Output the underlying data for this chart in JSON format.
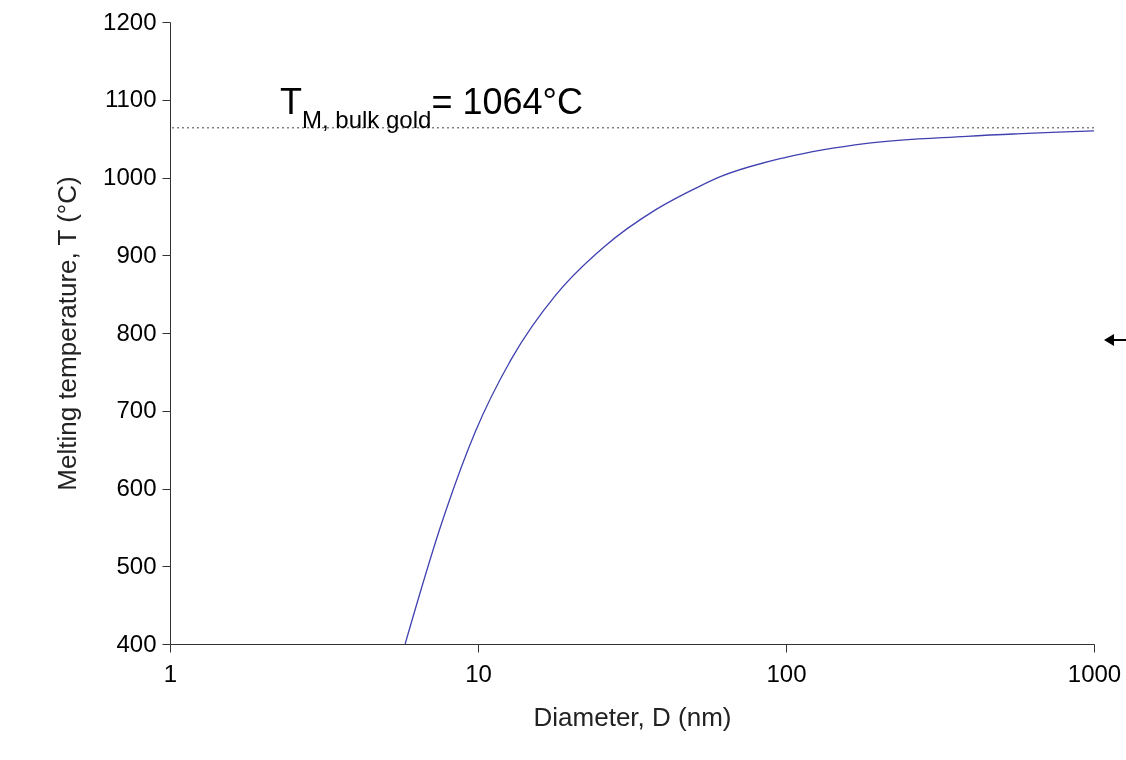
{
  "chart_data": {
    "type": "line",
    "xlabel": "Diameter, D (nm)",
    "ylabel": "Melting temperature, T (°C)",
    "log": "x",
    "x": [
      5.8,
      7.6,
      9.8,
      12.9,
      17.9,
      25.7,
      37.9,
      52.6,
      61.2,
      100,
      183,
      386,
      1000
    ],
    "series": [
      {
        "color": "#4040b0",
        "values": [
          400,
          554,
          673,
          768,
          849,
          911,
          959,
          989,
          1001,
          1026,
          1044,
          1053,
          1060
        ]
      }
    ],
    "xlim": [
      1,
      1000
    ],
    "xticks": [
      1,
      10,
      100,
      1000
    ],
    "ylim": [
      400,
      1200
    ],
    "yticks": [
      400,
      500,
      600,
      700,
      800,
      900,
      1000,
      1100,
      1200
    ],
    "grid": false,
    "marker": "none",
    "line_style": "solid",
    "ref_lines": [
      {
        "axis": "y",
        "value": 1064,
        "label": "T$_{M, bulk gold}$= 1064°C",
        "color": "#808080",
        "line_style": "dotted"
      }
    ]
  }
}
